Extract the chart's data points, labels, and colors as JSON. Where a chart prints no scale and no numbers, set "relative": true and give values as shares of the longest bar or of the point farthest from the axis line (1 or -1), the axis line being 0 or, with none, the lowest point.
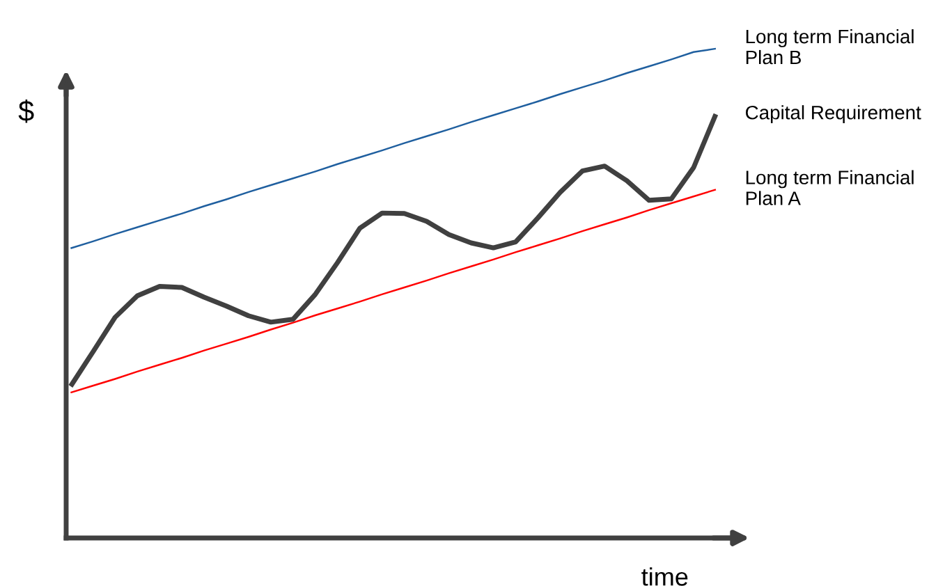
{
  "chart_data": {
    "type": "line",
    "relative": true,
    "xlabel": "time",
    "ylabel": "$",
    "line_style": "solid",
    "categories": [
      null,
      null,
      null,
      null,
      null,
      null,
      null,
      null,
      null,
      null,
      null,
      null,
      null,
      null,
      null,
      null,
      null,
      null,
      null,
      null,
      null,
      null,
      null,
      null,
      null,
      null,
      null,
      null,
      null,
      null
    ],
    "series": [
      {
        "name": "Long term Financial\nPlan B",
        "color": "#1f5f9f",
        "values": [
          0.592,
          0.606,
          0.621,
          0.635,
          0.649,
          0.663,
          0.678,
          0.692,
          0.707,
          0.721,
          0.735,
          0.749,
          0.764,
          0.778,
          0.792,
          0.807,
          0.821,
          0.835,
          0.85,
          0.864,
          0.878,
          0.892,
          0.907,
          0.921,
          0.935,
          0.95,
          0.964,
          0.978,
          0.993,
          1.0
        ]
      },
      {
        "name": "Long term Financial\nPlan A",
        "color": "#ff0000",
        "values": [
          0.297,
          0.311,
          0.325,
          0.34,
          0.354,
          0.368,
          0.383,
          0.397,
          0.411,
          0.426,
          0.44,
          0.455,
          0.469,
          0.483,
          0.498,
          0.512,
          0.526,
          0.541,
          0.555,
          0.569,
          0.584,
          0.598,
          0.612,
          0.627,
          0.641,
          0.655,
          0.67,
          0.684,
          0.698,
          0.712
        ]
      },
      {
        "name": "Capital Requirement",
        "color": "#404040",
        "values": [
          0.31,
          0.38,
          0.451,
          0.495,
          0.514,
          0.512,
          0.492,
          0.474,
          0.454,
          0.441,
          0.447,
          0.498,
          0.563,
          0.633,
          0.664,
          0.663,
          0.647,
          0.62,
          0.603,
          0.593,
          0.605,
          0.654,
          0.706,
          0.75,
          0.76,
          0.73,
          0.69,
          0.693,
          0.757,
          0.866
        ]
      }
    ]
  }
}
